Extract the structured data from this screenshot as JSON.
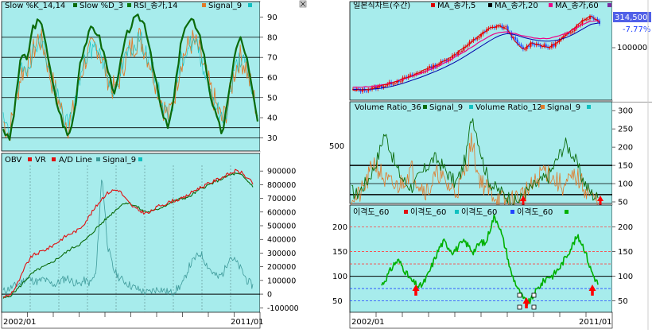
{
  "colors": {
    "panel_bg": "#a7ecec",
    "stoch_k": "#0b6b0b",
    "stoch_d": "#0a7a0a",
    "rsi": "#e07a2a",
    "signal": "#10c0c0",
    "obv": "#e01010",
    "vr": "#e01010",
    "ad_line": "#3e9a9a",
    "candle_up": "#ee0000",
    "candle_down": "#2244ff",
    "ma5": "#dd0000",
    "ma20": "#000000",
    "ma60": "#ee0088",
    "ma120": "#0000aa",
    "vol36": "#0b6b0b",
    "vol12": "#e07a2a",
    "disp": "#00b000",
    "marker": "#ff0000",
    "price_tag_bg": "#5060e8"
  },
  "left_top": {
    "legend": [
      "Slow %K_14,14",
      "Slow %D_3",
      "RSI_종가,14",
      "Signal_9"
    ],
    "y_ticks": [
      "90",
      "80",
      "70",
      "60",
      "50",
      "40",
      "30"
    ]
  },
  "left_bottom": {
    "legend": [
      "OBV",
      "VR",
      "A/D Line",
      "Signal_9"
    ],
    "y_ticks": [
      "900000",
      "800000",
      "700000",
      "600000",
      "500000",
      "400000",
      "300000",
      "200000",
      "100000",
      "0",
      "-100000"
    ]
  },
  "left_axis": {
    "start": "2002/01",
    "end": "2011/01"
  },
  "right_top": {
    "legend": [
      "일본식차트(주간)",
      "MA_종가,5",
      "MA_종가,20",
      "MA_종가,60"
    ],
    "price_tag": "314,500",
    "change_pct": "-7.77%",
    "y_ticks": [
      "100000"
    ]
  },
  "right_mid": {
    "legend": [
      "Volume Ratio_36",
      "Signal_9",
      "Volume Ratio_12",
      "Signal_9"
    ],
    "left_tick": "500",
    "y_ticks": [
      "300",
      "250",
      "200",
      "150",
      "100",
      "50"
    ]
  },
  "right_bottom": {
    "legend": [
      "이격도_60",
      "이격도_60",
      "이격도_60",
      "이격도_60"
    ],
    "y_ticks_left": [
      "200",
      "150",
      "100",
      "50"
    ],
    "y_ticks_right": [
      "200",
      "150",
      "100",
      "50"
    ]
  },
  "right_axis": {
    "start": "2002/01",
    "end": "2011/01"
  },
  "chart_data": [
    {
      "type": "line",
      "series": [
        {
          "name": "Slow %K_14,14",
          "values": [
            35,
            28,
            45,
            72,
            68,
            85,
            88,
            82,
            62,
            48,
            38,
            30,
            42,
            68,
            78,
            85,
            82,
            72,
            60,
            52,
            70,
            82,
            88,
            90,
            86,
            72,
            55,
            40,
            35,
            52,
            78,
            86,
            88,
            84,
            70,
            52,
            40,
            32,
            48,
            70,
            80,
            72,
            55,
            38
          ]
        },
        {
          "name": "RSI_종가,14",
          "values": [
            38,
            32,
            46,
            62,
            66,
            72,
            80,
            74,
            60,
            52,
            42,
            36,
            44,
            60,
            70,
            74,
            76,
            66,
            58,
            52,
            64,
            72,
            76,
            80,
            74,
            66,
            56,
            46,
            40,
            52,
            68,
            74,
            78,
            74,
            64,
            54,
            46,
            38,
            46,
            62,
            70,
            66,
            54,
            42
          ]
        }
      ],
      "ylim": [
        25,
        93
      ]
    },
    {
      "type": "line",
      "series": [
        {
          "name": "OBV",
          "values": [
            -20000,
            -10000,
            40000,
            120000,
            220000,
            280000,
            300000,
            320000,
            340000,
            370000,
            400000,
            430000,
            450000,
            470000,
            520000,
            580000,
            640000,
            700000,
            740000,
            760000,
            760000,
            700000,
            650000,
            620000,
            600000,
            590000,
            620000,
            650000,
            660000,
            680000,
            690000,
            700000,
            730000,
            760000,
            780000,
            800000,
            820000,
            840000,
            860000,
            880000,
            900000,
            890000,
            850000,
            810000
          ]
        },
        {
          "name": "A/D Line",
          "values": [
            -30000,
            -20000,
            20000,
            60000,
            110000,
            150000,
            180000,
            200000,
            220000,
            250000,
            280000,
            310000,
            340000,
            360000,
            390000,
            430000,
            480000,
            520000,
            560000,
            600000,
            640000,
            670000,
            660000,
            640000,
            610000,
            600000,
            610000,
            630000,
            650000,
            670000,
            690000,
            700000,
            710000,
            740000,
            770000,
            790000,
            810000,
            830000,
            850000,
            870000,
            880000,
            870000,
            830000,
            790000
          ]
        },
        {
          "name": "VR",
          "values": [
            20000,
            40000,
            60000,
            80000,
            120000,
            100000,
            90000,
            110000,
            80000,
            70000,
            100000,
            120000,
            90000,
            70000,
            100000,
            80000,
            150000,
            880000,
            350000,
            180000,
            120000,
            90000,
            60000,
            40000,
            20000,
            10000,
            30000,
            40000,
            20000,
            10000,
            40000,
            80000,
            200000,
            260000,
            300000,
            220000,
            160000,
            120000,
            160000,
            280000,
            240000,
            180000,
            100000,
            60000
          ]
        }
      ],
      "ylim": [
        -110000,
        930000
      ]
    },
    {
      "type": "line",
      "series": [
        {
          "name": "MA_종가,5",
          "values": [
            36000,
            34000,
            40000,
            48000,
            58000,
            70000,
            82000,
            96000,
            110000,
            126000,
            142000,
            160000,
            182000,
            208000,
            236000,
            262000,
            288000,
            300000,
            290000,
            240000,
            200000,
            230000,
            220000,
            210000,
            230000,
            260000,
            290000,
            320000,
            340000,
            314500
          ]
        },
        {
          "name": "MA_종가,60",
          "values": [
            38000,
            37000,
            38000,
            41000,
            46000,
            54000,
            64000,
            76000,
            88000,
            102000,
            116000,
            132000,
            150000,
            170000,
            192000,
            214000,
            236000,
            256000,
            268000,
            264000,
            252000,
            244000,
            238000,
            236000,
            240000,
            250000,
            266000,
            286000,
            306000,
            312000
          ]
        }
      ],
      "ylim": [
        0,
        360000
      ]
    },
    {
      "type": "line",
      "series": [
        {
          "name": "Volume Ratio_36",
          "values": [
            80,
            70,
            90,
            110,
            140,
            180,
            240,
            200,
            150,
            120,
            100,
            90,
            110,
            130,
            150,
            170,
            160,
            140,
            120,
            100,
            130,
            180,
            290,
            230,
            160,
            110,
            90,
            80,
            70,
            60,
            50,
            60,
            80,
            90,
            100,
            110,
            120,
            150,
            180,
            210,
            190,
            160,
            120,
            90,
            70,
            60
          ]
        },
        {
          "name": "Volume Ratio_12",
          "values": [
            70,
            60,
            80,
            110,
            160,
            140,
            110,
            100,
            90,
            100,
            120,
            140,
            110,
            90,
            80,
            110,
            130,
            100,
            90,
            80,
            100,
            150,
            220,
            130,
            100,
            80,
            70,
            60,
            50,
            50,
            60,
            70,
            80,
            90,
            110,
            140,
            130,
            110,
            100,
            90,
            110,
            120,
            100,
            80,
            60,
            50
          ]
        }
      ],
      "ylim": [
        50,
        320
      ]
    },
    {
      "type": "line",
      "series": [
        {
          "name": "이격도_60",
          "values": [
            82,
            95,
            110,
            125,
            132,
            120,
            105,
            92,
            85,
            78,
            85,
            100,
            120,
            140,
            160,
            170,
            160,
            150,
            155,
            165,
            170,
            160,
            150,
            160,
            170,
            165,
            195,
            220,
            210,
            180,
            150,
            110,
            90,
            70,
            55,
            45,
            52,
            68,
            80,
            90,
            100,
            100,
            110,
            120,
            135,
            150,
            165,
            180,
            170,
            150,
            120,
            100,
            85
          ]
        }
      ],
      "ylim": [
        30,
        225
      ]
    }
  ]
}
